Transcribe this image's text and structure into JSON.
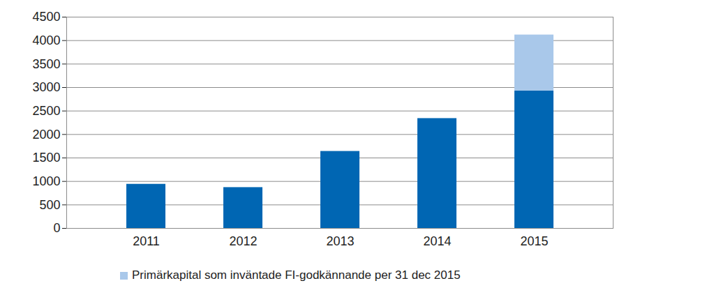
{
  "chart_data": {
    "type": "bar",
    "stacked": true,
    "categories": [
      "2011",
      "2012",
      "2013",
      "2014",
      "2015"
    ],
    "series": [
      {
        "name": null,
        "color": "#0066b3",
        "values": [
          940,
          870,
          1640,
          2340,
          2930
        ]
      },
      {
        "name": "Primärkapital som inväntade FI-godkännande per 31 dec 2015",
        "color": "#a9c8ea",
        "values": [
          null,
          null,
          null,
          null,
          1190
        ]
      }
    ],
    "ylim": [
      0,
      4500
    ],
    "yticks": [
      0,
      500,
      1000,
      1500,
      2000,
      2500,
      3000,
      3500,
      4000,
      4500
    ],
    "grid": true,
    "legend": "bottom"
  }
}
